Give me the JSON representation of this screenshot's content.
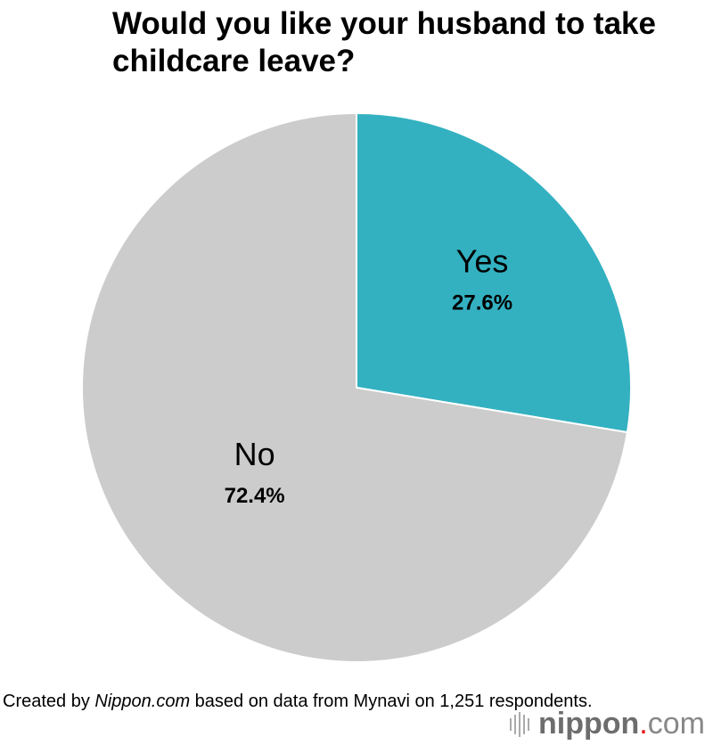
{
  "chart_data": {
    "type": "pie",
    "title": "Would you like your husband to take childcare leave?",
    "slices": [
      {
        "label": "Yes",
        "value": 27.6,
        "value_label": "27.6%",
        "color": "#33b1c1"
      },
      {
        "label": "No",
        "value": 72.4,
        "value_label": "72.4%",
        "color": "#cccccc"
      }
    ],
    "start": "top",
    "direction": "clockwise"
  },
  "source": {
    "prefix": "Created by ",
    "brand": "Nippon.com",
    "suffix": " based on data from Mynavi on 1,251 respondents."
  },
  "logo": {
    "name": "nippon",
    "dot": ".",
    "tld": "com"
  }
}
